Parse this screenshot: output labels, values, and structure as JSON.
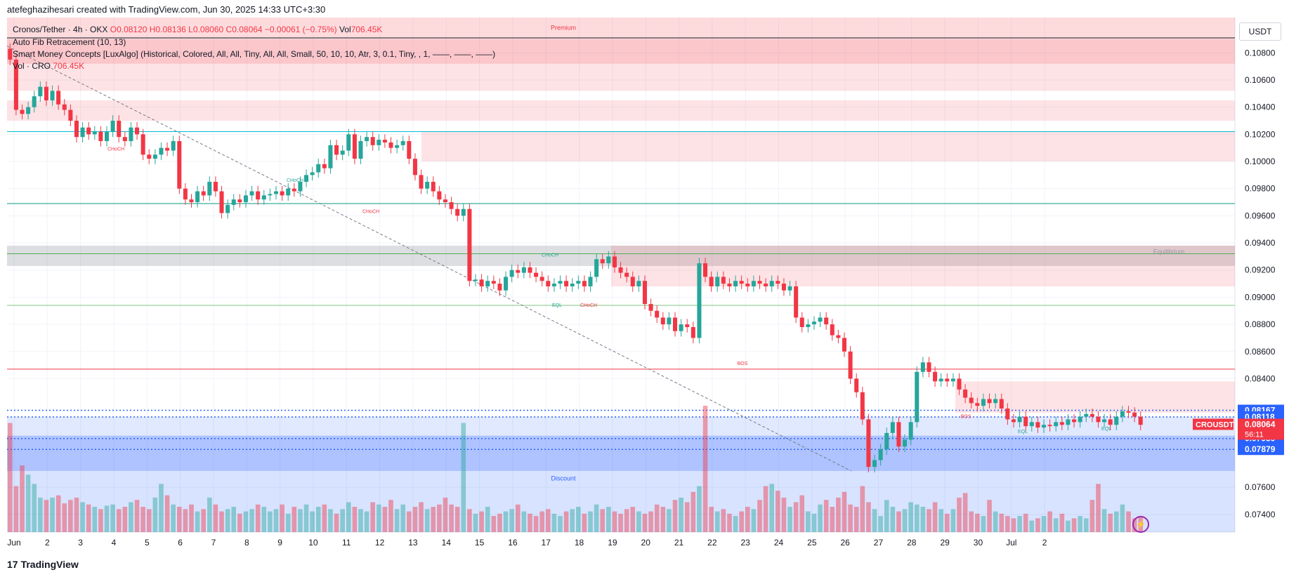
{
  "header": {
    "author": "atefeghazihesari created with TradingView.com, Jun 30, 2025 14:33 UTC+3:30"
  },
  "legend": {
    "symbol": "Cronos/Tether · 4h · OKX",
    "ohlc": "O0.08120 H0.08136 L0.08060 C0.08064 −0.00061 (−0.75%)",
    "vol_label": "Vol",
    "vol_value": "706.45K",
    "indicator_fib": "Auto Fib Retracement (10, 13)",
    "indicator_smc": "Smart Money Concepts [LuxAlgo] (Historical, Colored, All, All, Tiny, All, All, Small, 50, 10, 10, Atr, 3, 0.1, Tiny, , 1, ——, ——, ——)",
    "vol_indicator": "Vol · CRO",
    "vol_indicator_value": "706.45K"
  },
  "currency_button": "USDT",
  "footer": {
    "brand": "TradingView"
  },
  "colors": {
    "up": "#26a69a",
    "down": "#f23645",
    "zone_red": "#f23645",
    "zone_blue": "#2962ff",
    "grid": "#f0f3fa"
  },
  "chart_data": {
    "type": "candlestick",
    "interval": "4h",
    "ylim": [
      0.0727,
      0.1106
    ],
    "y_ticks": [
      "0.10800",
      "0.10600",
      "0.10400",
      "0.10200",
      "0.10000",
      "0.09800",
      "0.09600",
      "0.09400",
      "0.09200",
      "0.09000",
      "0.08800",
      "0.08600",
      "0.08400",
      "0.07600",
      "0.07400"
    ],
    "x_ticks": [
      "Jun",
      "2",
      "3",
      "4",
      "5",
      "6",
      "7",
      "8",
      "9",
      "10",
      "11",
      "12",
      "13",
      "14",
      "15",
      "16",
      "17",
      "18",
      "19",
      "20",
      "21",
      "22",
      "23",
      "24",
      "25",
      "26",
      "27",
      "28",
      "29",
      "30",
      "Jul",
      "2"
    ],
    "closes": [
      0.1075,
      0.1038,
      0.1035,
      0.104,
      0.1048,
      0.1055,
      0.1045,
      0.1052,
      0.1042,
      0.1038,
      0.103,
      0.1018,
      0.1025,
      0.102,
      0.1022,
      0.1015,
      0.1022,
      0.103,
      0.1018,
      0.1015,
      0.1025,
      0.102,
      0.1005,
      0.1002,
      0.1005,
      0.101,
      0.1008,
      0.1015,
      0.098,
      0.0972,
      0.097,
      0.0978,
      0.0975,
      0.0985,
      0.0978,
      0.0962,
      0.0968,
      0.0972,
      0.097,
      0.0975,
      0.0978,
      0.0972,
      0.0975,
      0.0976,
      0.0978,
      0.0975,
      0.098,
      0.0978,
      0.0985,
      0.099,
      0.0992,
      0.0998,
      0.0995,
      0.1012,
      0.1005,
      0.1008,
      0.102,
      0.1002,
      0.1015,
      0.1018,
      0.1012,
      0.1016,
      0.1014,
      0.101,
      0.1012,
      0.1015,
      0.1002,
      0.099,
      0.098,
      0.0985,
      0.0978,
      0.0972,
      0.097,
      0.0965,
      0.096,
      0.0965,
      0.0912,
      0.0913,
      0.0908,
      0.0912,
      0.091,
      0.0905,
      0.0915,
      0.092,
      0.0918,
      0.0922,
      0.0918,
      0.0915,
      0.0912,
      0.0908,
      0.091,
      0.0912,
      0.0908,
      0.091,
      0.0912,
      0.0908,
      0.0915,
      0.0928,
      0.0925,
      0.093,
      0.0922,
      0.0918,
      0.0915,
      0.0908,
      0.0912,
      0.0895,
      0.089,
      0.0885,
      0.088,
      0.0885,
      0.0875,
      0.088,
      0.0878,
      0.087,
      0.0925,
      0.0915,
      0.0908,
      0.0915,
      0.091,
      0.0908,
      0.0912,
      0.091,
      0.0908,
      0.0912,
      0.091,
      0.0908,
      0.0912,
      0.091,
      0.0905,
      0.0908,
      0.0885,
      0.0878,
      0.088,
      0.0882,
      0.0885,
      0.088,
      0.0872,
      0.087,
      0.086,
      0.084,
      0.083,
      0.081,
      0.0775,
      0.078,
      0.0788,
      0.08,
      0.0808,
      0.079,
      0.0795,
      0.0808,
      0.0845,
      0.0852,
      0.0845,
      0.0838,
      0.084,
      0.0838,
      0.084,
      0.0832,
      0.0826,
      0.0822,
      0.082,
      0.0825,
      0.0822,
      0.0825,
      0.0818,
      0.081,
      0.0808,
      0.0812,
      0.0805,
      0.0808,
      0.0804,
      0.0806,
      0.0805,
      0.0808,
      0.0806,
      0.081,
      0.0808,
      0.0812,
      0.0814,
      0.0812,
      0.0808,
      0.081,
      0.0806,
      0.0812,
      0.0816,
      0.0815,
      0.0812,
      0.0806
    ],
    "volumes": [
      95,
      40,
      58,
      50,
      42,
      30,
      28,
      30,
      32,
      25,
      28,
      30,
      26,
      24,
      22,
      20,
      23,
      24,
      20,
      22,
      26,
      28,
      22,
      20,
      30,
      42,
      32,
      24,
      22,
      20,
      24,
      18,
      20,
      30,
      24,
      18,
      20,
      22,
      16,
      18,
      20,
      24,
      22,
      18,
      20,
      24,
      16,
      22,
      20,
      24,
      18,
      22,
      24,
      20,
      16,
      20,
      26,
      22,
      20,
      18,
      26,
      24,
      22,
      28,
      20,
      24,
      18,
      22,
      26,
      20,
      22,
      24,
      30,
      24,
      22,
      95,
      20,
      16,
      18,
      22,
      14,
      16,
      18,
      20,
      24,
      18,
      16,
      14,
      18,
      20,
      16,
      14,
      18,
      20,
      22,
      16,
      18,
      24,
      20,
      22,
      18,
      16,
      20,
      22,
      18,
      16,
      18,
      24,
      22,
      20,
      28,
      30,
      26,
      35,
      40,
      110,
      22,
      18,
      20,
      16,
      14,
      18,
      22,
      20,
      28,
      40,
      42,
      36,
      30,
      22,
      26,
      32,
      18,
      16,
      24,
      28,
      22,
      30,
      35,
      24,
      22,
      40,
      26,
      20,
      14,
      28,
      22,
      18,
      20,
      26,
      24,
      22,
      20,
      26,
      20,
      16,
      20,
      30,
      34,
      18,
      16,
      14,
      28,
      18,
      16,
      14,
      12,
      14,
      16,
      10,
      12,
      14,
      18,
      12,
      16,
      10,
      12,
      14,
      12,
      28,
      42,
      20,
      16,
      18,
      24,
      18,
      12,
      14
    ],
    "levels": [
      {
        "label": "0.08167",
        "value": 0.08167,
        "color": "#2962ff"
      },
      {
        "label": "0.08118",
        "value": 0.08118,
        "color": "#2962ff"
      },
      {
        "label": "0.07959",
        "value": 0.07959,
        "color": "#2962ff"
      },
      {
        "label": "0.07879",
        "value": 0.07879,
        "color": "#2962ff"
      }
    ],
    "price_label": {
      "symbol": "CROUSDT",
      "price": "0.08064",
      "countdown": "56:11"
    },
    "annotations": [
      "CHoCH",
      "CHoCH",
      "CHoCH",
      "CHoCH",
      "CHoCH",
      "EQL",
      "BOS",
      "BOS",
      "EQL",
      "EQL"
    ],
    "zone_labels": {
      "premium": "Premium",
      "equilibrium": "Equilibrium",
      "discount": "Discount"
    }
  }
}
